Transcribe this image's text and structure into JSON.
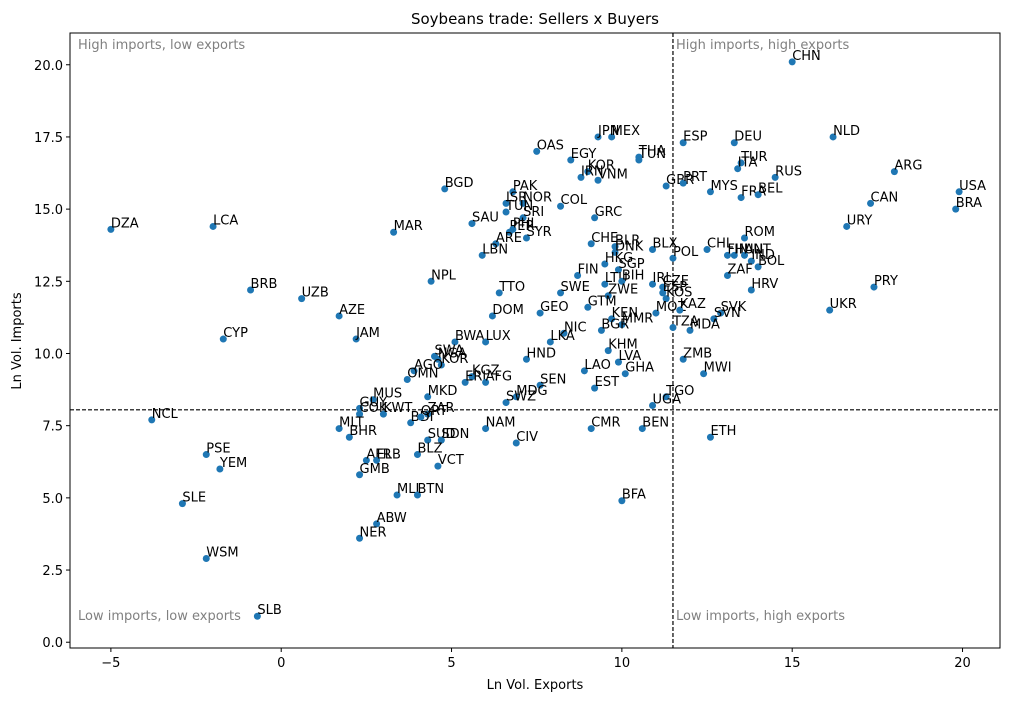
{
  "chart_data": {
    "type": "scatter",
    "title": "Soybeans trade: Sellers x Buyers",
    "xlabel": "Ln Vol. Exports",
    "ylabel": "Ln Vol. Imports",
    "xlim": [
      -6.2,
      21.1
    ],
    "ylim": [
      -0.2,
      21.1
    ],
    "xticks": [
      -5,
      0,
      5,
      10,
      15,
      20
    ],
    "yticks": [
      0.0,
      2.5,
      5.0,
      7.5,
      10.0,
      12.5,
      15.0,
      17.5,
      20.0
    ],
    "xtick_labels": [
      "−5",
      "0",
      "5",
      "10",
      "15",
      "20"
    ],
    "ytick_labels": [
      "0.0",
      "2.5",
      "5.0",
      "7.5",
      "10.0",
      "12.5",
      "15.0",
      "17.5",
      "20.0"
    ],
    "vline_x": 11.5,
    "hline_y": 8.05,
    "grid": false,
    "marker_color": "#1f77b4",
    "quadrant_color": "#808080",
    "quadrants": {
      "top_left": "High imports, low exports",
      "top_right": "High imports, high exports",
      "bottom_left": "Low imports, low exports",
      "bottom_right": "Low imports, high exports"
    },
    "points": [
      {
        "label": "CHN",
        "x": 15.0,
        "y": 20.1
      },
      {
        "label": "NLD",
        "x": 16.2,
        "y": 17.5
      },
      {
        "label": "DEU",
        "x": 13.3,
        "y": 17.3
      },
      {
        "label": "ESP",
        "x": 11.8,
        "y": 17.3
      },
      {
        "label": "MEX",
        "x": 9.7,
        "y": 17.5
      },
      {
        "label": "JPN",
        "x": 9.3,
        "y": 17.5
      },
      {
        "label": "OAS",
        "x": 7.5,
        "y": 17.0
      },
      {
        "label": "EGY",
        "x": 8.5,
        "y": 16.7
      },
      {
        "label": "THA",
        "x": 10.5,
        "y": 16.8
      },
      {
        "label": "TUN",
        "x": 10.5,
        "y": 16.7
      },
      {
        "label": "TUR",
        "x": 13.5,
        "y": 16.6
      },
      {
        "label": "ITA",
        "x": 13.4,
        "y": 16.4
      },
      {
        "label": "KOR",
        "x": 9.0,
        "y": 16.3
      },
      {
        "label": "IRN",
        "x": 8.8,
        "y": 16.1
      },
      {
        "label": "VNM",
        "x": 9.3,
        "y": 16.0
      },
      {
        "label": "RUS",
        "x": 14.5,
        "y": 16.1
      },
      {
        "label": "ARG",
        "x": 18.0,
        "y": 16.3
      },
      {
        "label": "GBR",
        "x": 11.3,
        "y": 15.8
      },
      {
        "label": "PRT",
        "x": 11.8,
        "y": 15.9
      },
      {
        "label": "MYS",
        "x": 12.6,
        "y": 15.6
      },
      {
        "label": "USA",
        "x": 19.9,
        "y": 15.6
      },
      {
        "label": "FRA",
        "x": 13.5,
        "y": 15.4
      },
      {
        "label": "BEL",
        "x": 14.0,
        "y": 15.5
      },
      {
        "label": "BGD",
        "x": 4.8,
        "y": 15.7
      },
      {
        "label": "PAK",
        "x": 6.8,
        "y": 15.6
      },
      {
        "label": "CAN",
        "x": 17.3,
        "y": 15.2
      },
      {
        "label": "BRA",
        "x": 19.8,
        "y": 15.0
      },
      {
        "label": "COL",
        "x": 8.2,
        "y": 15.1
      },
      {
        "label": "ISR",
        "x": 6.6,
        "y": 15.2
      },
      {
        "label": "NOR",
        "x": 7.1,
        "y": 15.2
      },
      {
        "label": "TUN",
        "x": 6.6,
        "y": 14.9
      },
      {
        "label": "SRI",
        "x": 7.1,
        "y": 14.7
      },
      {
        "label": "GRC",
        "x": 9.2,
        "y": 14.7
      },
      {
        "label": "DZA",
        "x": -5.0,
        "y": 14.3
      },
      {
        "label": "LCA",
        "x": -2.0,
        "y": 14.4
      },
      {
        "label": "SAU",
        "x": 5.6,
        "y": 14.5
      },
      {
        "label": "MAR",
        "x": 3.3,
        "y": 14.2
      },
      {
        "label": "PER",
        "x": 6.7,
        "y": 14.2
      },
      {
        "label": "PHL",
        "x": 6.8,
        "y": 14.3
      },
      {
        "label": "SYR",
        "x": 7.2,
        "y": 14.0
      },
      {
        "label": "ARE",
        "x": 6.3,
        "y": 13.8
      },
      {
        "label": "URY",
        "x": 16.6,
        "y": 14.4
      },
      {
        "label": "ROM",
        "x": 13.6,
        "y": 14.0
      },
      {
        "label": "CHE",
        "x": 9.1,
        "y": 13.8
      },
      {
        "label": "BLR",
        "x": 9.8,
        "y": 13.7
      },
      {
        "label": "DNK",
        "x": 9.8,
        "y": 13.5
      },
      {
        "label": "BLX",
        "x": 10.9,
        "y": 13.6
      },
      {
        "label": "CHL",
        "x": 12.5,
        "y": 13.6
      },
      {
        "label": "POL",
        "x": 11.5,
        "y": 13.3
      },
      {
        "label": "FIN",
        "x": 13.1,
        "y": 13.4
      },
      {
        "label": "HUN",
        "x": 13.3,
        "y": 13.4
      },
      {
        "label": "AUT",
        "x": 13.6,
        "y": 13.4
      },
      {
        "label": "IND",
        "x": 13.8,
        "y": 13.2
      },
      {
        "label": "BOL",
        "x": 14.0,
        "y": 13.0
      },
      {
        "label": "LBN",
        "x": 5.9,
        "y": 13.4
      },
      {
        "label": "HKG",
        "x": 9.5,
        "y": 13.1
      },
      {
        "label": "SGP",
        "x": 9.9,
        "y": 12.9
      },
      {
        "label": "ZAF",
        "x": 13.1,
        "y": 12.7
      },
      {
        "label": "BRB",
        "x": -0.9,
        "y": 12.2
      },
      {
        "label": "NPL",
        "x": 4.4,
        "y": 12.5
      },
      {
        "label": "FIN",
        "x": 8.7,
        "y": 12.7
      },
      {
        "label": "LTU",
        "x": 9.5,
        "y": 12.4
      },
      {
        "label": "BIH",
        "x": 10.0,
        "y": 12.5
      },
      {
        "label": "IRL",
        "x": 10.9,
        "y": 12.4
      },
      {
        "label": "CZE",
        "x": 11.2,
        "y": 12.3
      },
      {
        "label": "ESP",
        "x": 11.2,
        "y": 12.1
      },
      {
        "label": "KOS",
        "x": 11.3,
        "y": 11.9
      },
      {
        "label": "PRY",
        "x": 17.4,
        "y": 12.3
      },
      {
        "label": "HRV",
        "x": 13.8,
        "y": 12.2
      },
      {
        "label": "UZB",
        "x": 0.6,
        "y": 11.9
      },
      {
        "label": "TTO",
        "x": 6.4,
        "y": 12.1
      },
      {
        "label": "SWE",
        "x": 8.2,
        "y": 12.1
      },
      {
        "label": "ZWE",
        "x": 9.6,
        "y": 12.0
      },
      {
        "label": "GTM",
        "x": 9.0,
        "y": 11.6
      },
      {
        "label": "MOZ",
        "x": 11.0,
        "y": 11.4
      },
      {
        "label": "KAZ",
        "x": 11.7,
        "y": 11.5
      },
      {
        "label": "SVK",
        "x": 12.9,
        "y": 11.4
      },
      {
        "label": "SVN",
        "x": 12.7,
        "y": 11.2
      },
      {
        "label": "UKR",
        "x": 16.1,
        "y": 11.5
      },
      {
        "label": "AZE",
        "x": 1.7,
        "y": 11.3
      },
      {
        "label": "GEO",
        "x": 7.6,
        "y": 11.4
      },
      {
        "label": "DOM",
        "x": 6.2,
        "y": 11.3
      },
      {
        "label": "KEN",
        "x": 9.7,
        "y": 11.2
      },
      {
        "label": "MMR",
        "x": 10.0,
        "y": 11.0
      },
      {
        "label": "BGR",
        "x": 9.4,
        "y": 10.8
      },
      {
        "label": "TZA",
        "x": 11.5,
        "y": 10.9
      },
      {
        "label": "MDA",
        "x": 12.0,
        "y": 10.8
      },
      {
        "label": "CYP",
        "x": -1.7,
        "y": 10.5
      },
      {
        "label": "JAM",
        "x": 2.2,
        "y": 10.5
      },
      {
        "label": "NIC",
        "x": 8.3,
        "y": 10.7
      },
      {
        "label": "BWA",
        "x": 5.1,
        "y": 10.4
      },
      {
        "label": "LUX",
        "x": 6.0,
        "y": 10.4
      },
      {
        "label": "LKA",
        "x": 7.9,
        "y": 10.4
      },
      {
        "label": "SWA",
        "x": 4.5,
        "y": 9.9
      },
      {
        "label": "NGA",
        "x": 4.6,
        "y": 9.8
      },
      {
        "label": "KOR",
        "x": 4.7,
        "y": 9.6
      },
      {
        "label": "KHM",
        "x": 9.6,
        "y": 10.1
      },
      {
        "label": "ZMB",
        "x": 11.8,
        "y": 9.8
      },
      {
        "label": "HND",
        "x": 7.2,
        "y": 9.8
      },
      {
        "label": "LVA",
        "x": 9.9,
        "y": 9.7
      },
      {
        "label": "AGO",
        "x": 3.9,
        "y": 9.4
      },
      {
        "label": "LAO",
        "x": 8.9,
        "y": 9.4
      },
      {
        "label": "GHA",
        "x": 10.1,
        "y": 9.3
      },
      {
        "label": "MWI",
        "x": 12.4,
        "y": 9.3
      },
      {
        "label": "OMN",
        "x": 3.7,
        "y": 9.1
      },
      {
        "label": "KGZ",
        "x": 5.6,
        "y": 9.2
      },
      {
        "label": "ERI",
        "x": 5.4,
        "y": 9.0
      },
      {
        "label": "AFG",
        "x": 6.0,
        "y": 9.0
      },
      {
        "label": "SEN",
        "x": 7.6,
        "y": 8.9
      },
      {
        "label": "EST",
        "x": 9.2,
        "y": 8.8
      },
      {
        "label": "MKD",
        "x": 4.3,
        "y": 8.5
      },
      {
        "label": "MDG",
        "x": 6.9,
        "y": 8.5
      },
      {
        "label": "SWZ",
        "x": 6.6,
        "y": 8.3
      },
      {
        "label": "TGO",
        "x": 11.3,
        "y": 8.5
      },
      {
        "label": "UGA",
        "x": 10.9,
        "y": 8.2
      },
      {
        "label": "MUS",
        "x": 2.7,
        "y": 8.4
      },
      {
        "label": "GUY",
        "x": 2.3,
        "y": 8.1
      },
      {
        "label": "KWT",
        "x": 3.0,
        "y": 7.9
      },
      {
        "label": "ZAR",
        "x": 4.3,
        "y": 7.9
      },
      {
        "label": "COK",
        "x": 2.3,
        "y": 7.9
      },
      {
        "label": "BDI",
        "x": 3.8,
        "y": 7.6
      },
      {
        "label": "QRT",
        "x": 4.1,
        "y": 7.8
      },
      {
        "label": "NCL",
        "x": -3.8,
        "y": 7.7
      },
      {
        "label": "MLT",
        "x": 1.7,
        "y": 7.4
      },
      {
        "label": "NAM",
        "x": 6.0,
        "y": 7.4
      },
      {
        "label": "CMR",
        "x": 9.1,
        "y": 7.4
      },
      {
        "label": "BEN",
        "x": 10.6,
        "y": 7.4
      },
      {
        "label": "ETH",
        "x": 12.6,
        "y": 7.1
      },
      {
        "label": "BHR",
        "x": 2.0,
        "y": 7.1
      },
      {
        "label": "SUD",
        "x": 4.3,
        "y": 7.0
      },
      {
        "label": "SDN",
        "x": 4.7,
        "y": 7.0
      },
      {
        "label": "CIV",
        "x": 6.9,
        "y": 6.9
      },
      {
        "label": "PSE",
        "x": -2.2,
        "y": 6.5
      },
      {
        "label": "BLZ",
        "x": 4.0,
        "y": 6.5
      },
      {
        "label": "AFR",
        "x": 2.5,
        "y": 6.3
      },
      {
        "label": "ELB",
        "x": 2.8,
        "y": 6.3
      },
      {
        "label": "VCT",
        "x": 4.6,
        "y": 6.1
      },
      {
        "label": "YEM",
        "x": -1.8,
        "y": 6.0
      },
      {
        "label": "GMB",
        "x": 2.3,
        "y": 5.8
      },
      {
        "label": "MLI",
        "x": 3.4,
        "y": 5.1
      },
      {
        "label": "BTN",
        "x": 4.0,
        "y": 5.1
      },
      {
        "label": "SLE",
        "x": -2.9,
        "y": 4.8
      },
      {
        "label": "BFA",
        "x": 10.0,
        "y": 4.9
      },
      {
        "label": "ABW",
        "x": 2.8,
        "y": 4.1
      },
      {
        "label": "NER",
        "x": 2.3,
        "y": 3.6
      },
      {
        "label": "WSM",
        "x": -2.2,
        "y": 2.9
      },
      {
        "label": "SLB",
        "x": -0.7,
        "y": 0.9
      }
    ]
  }
}
